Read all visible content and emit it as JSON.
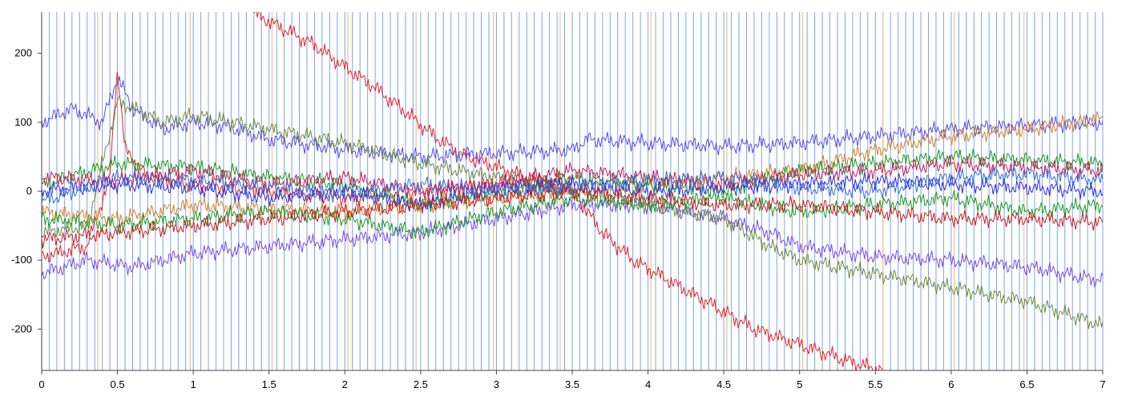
{
  "chart_data": {
    "type": "line",
    "title": "",
    "xlabel": "",
    "ylabel": "",
    "xlim": [
      0,
      7
    ],
    "ylim": [
      -260,
      260
    ],
    "x_ticks": [
      0,
      0.5,
      1,
      1.5,
      2,
      2.5,
      3,
      3.5,
      4,
      4.5,
      5,
      5.5,
      6,
      6.5,
      7
    ],
    "x_tick_labels": [
      "0",
      "0.5",
      "1",
      "1.5",
      "2",
      "2.5",
      "3",
      "3.5",
      "4",
      "4.5",
      "5",
      "5.5",
      "6",
      "6.5",
      "7"
    ],
    "y_ticks": [
      200,
      100,
      0,
      -100,
      -200
    ],
    "y_tick_labels": [
      "200",
      "100",
      "0",
      "-100",
      "-200"
    ],
    "grid": false,
    "legend": "none",
    "event_markers": {
      "description": "dense vertical event marker lines",
      "blue_spacing": 0.05,
      "blue_color": "#6a9af0",
      "orange_color": "#f2c48a",
      "orange_x": [
        0.37,
        0.98,
        1.52,
        2.02,
        2.47,
        2.98,
        3.42,
        4.02,
        4.52,
        5.02,
        5.55,
        6.02,
        6.48
      ]
    },
    "series": [
      {
        "color": "#e52020",
        "x": [
          1.4,
          1.6,
          1.8,
          2.0,
          2.2,
          2.4,
          2.6,
          2.8,
          3.0,
          3.2,
          3.4,
          3.5
        ],
        "y": [
          258,
          235,
          212,
          180,
          150,
          115,
          78,
          50,
          35,
          20,
          5,
          0
        ]
      },
      {
        "color": "#e52020",
        "x": [
          3.5,
          3.7,
          3.9,
          4.1,
          4.3,
          4.5,
          4.7,
          4.9,
          5.1,
          5.3,
          5.5,
          5.55
        ],
        "y": [
          0,
          -60,
          -100,
          -125,
          -150,
          -175,
          -200,
          -215,
          -230,
          -245,
          -258,
          -260
        ]
      },
      {
        "color": "#e52020",
        "x": [
          0.0,
          0.3,
          0.45,
          0.5,
          0.55,
          0.7,
          1.0,
          1.5,
          2.0,
          2.5,
          3.0,
          3.5
        ],
        "y": [
          -95,
          -80,
          20,
          180,
          60,
          20,
          10,
          0,
          -10,
          0,
          10,
          15
        ]
      },
      {
        "color": "#5a4ae6",
        "x": [
          0.0,
          0.2,
          0.4,
          0.5,
          0.6,
          0.8,
          1.0,
          1.2,
          1.5,
          2.0,
          2.5,
          3.0,
          3.5,
          3.6,
          4.0,
          4.5,
          5.0,
          5.5,
          6.0,
          6.5,
          7.0
        ],
        "y": [
          100,
          120,
          100,
          165,
          120,
          90,
          100,
          95,
          75,
          60,
          50,
          55,
          60,
          75,
          70,
          65,
          70,
          80,
          90,
          95,
          100
        ]
      },
      {
        "color": "#7a4ae6",
        "x": [
          0.0,
          0.3,
          0.6,
          1.0,
          1.5,
          2.0,
          2.5,
          3.0,
          3.5,
          4.0,
          4.5,
          4.8,
          5.0,
          5.5,
          6.0,
          6.5,
          7.0
        ],
        "y": [
          -120,
          -100,
          -110,
          -90,
          -80,
          -70,
          -60,
          -40,
          -20,
          -20,
          -40,
          -60,
          -80,
          -95,
          -100,
          -110,
          -130
        ]
      },
      {
        "color": "#6a8a3a",
        "x": [
          0.0,
          0.3,
          0.5,
          0.8,
          1.0,
          1.5,
          2.0,
          2.5,
          3.0,
          3.5,
          4.0,
          4.5,
          4.8,
          5.0,
          5.5,
          6.0,
          6.5,
          7.0
        ],
        "y": [
          -60,
          -50,
          130,
          100,
          110,
          90,
          70,
          40,
          20,
          0,
          -20,
          -40,
          -80,
          -100,
          -120,
          -140,
          -160,
          -195
        ]
      },
      {
        "color": "#d0822a",
        "x": [
          0.0,
          0.5,
          1.0,
          2.0,
          3.0,
          4.0,
          5.0,
          5.5,
          6.0,
          6.5,
          7.0
        ],
        "y": [
          -30,
          -40,
          -20,
          -30,
          -10,
          10,
          30,
          60,
          80,
          90,
          105
        ]
      },
      {
        "color": "#1a9a1a",
        "x": [
          0.0,
          0.5,
          1.0,
          1.5,
          2.0,
          2.5,
          3.0,
          3.5,
          4.0,
          4.5,
          5.0,
          5.5,
          6.0,
          6.5,
          7.0
        ],
        "y": [
          10,
          40,
          35,
          20,
          10,
          -20,
          0,
          20,
          10,
          0,
          30,
          40,
          50,
          45,
          40
        ]
      },
      {
        "color": "#1a9a1a",
        "x": [
          0.0,
          0.5,
          1.0,
          1.5,
          2.0,
          2.5,
          3.0,
          3.5,
          4.0,
          4.5,
          5.0,
          5.5,
          6.0,
          6.5,
          7.0
        ],
        "y": [
          -40,
          -50,
          -40,
          -30,
          -40,
          -60,
          -30,
          -10,
          -20,
          -10,
          -30,
          -20,
          -10,
          -30,
          -20
        ]
      },
      {
        "color": "#2a2ae6",
        "x": [
          0.0,
          0.5,
          1.0,
          1.5,
          2.0,
          2.5,
          3.0,
          3.5,
          4.0,
          4.5,
          5.0,
          5.5,
          6.0,
          6.5,
          7.0
        ],
        "y": [
          0,
          10,
          5,
          -10,
          0,
          -20,
          5,
          10,
          0,
          5,
          10,
          15,
          10,
          5,
          0
        ]
      },
      {
        "color": "#c81a5a",
        "x": [
          0.0,
          0.5,
          1.0,
          1.5,
          2.0,
          2.5,
          3.0,
          3.5,
          4.0,
          4.5,
          5.0,
          5.5,
          6.0,
          6.5,
          7.0
        ],
        "y": [
          20,
          15,
          30,
          10,
          20,
          0,
          10,
          30,
          20,
          10,
          25,
          30,
          40,
          35,
          30
        ]
      },
      {
        "color": "#c81a1a",
        "x": [
          0.0,
          0.5,
          1.0,
          1.5,
          2.0,
          2.5,
          3.0,
          3.5,
          4.0,
          4.5,
          5.0,
          5.5,
          6.0,
          6.5,
          7.0
        ],
        "y": [
          -70,
          -60,
          -50,
          -40,
          -30,
          -20,
          -10,
          0,
          -10,
          -20,
          -20,
          -30,
          -40,
          -40,
          -45
        ]
      },
      {
        "color": "#3a6ad6",
        "x": [
          0.0,
          0.5,
          1.0,
          1.5,
          2.0,
          2.5,
          3.0,
          3.5,
          4.0,
          4.5,
          5.0,
          5.5,
          6.0,
          6.5,
          7.0
        ],
        "y": [
          -15,
          20,
          15,
          5,
          -5,
          10,
          0,
          5,
          15,
          20,
          5,
          0,
          20,
          25,
          15
        ]
      }
    ]
  }
}
